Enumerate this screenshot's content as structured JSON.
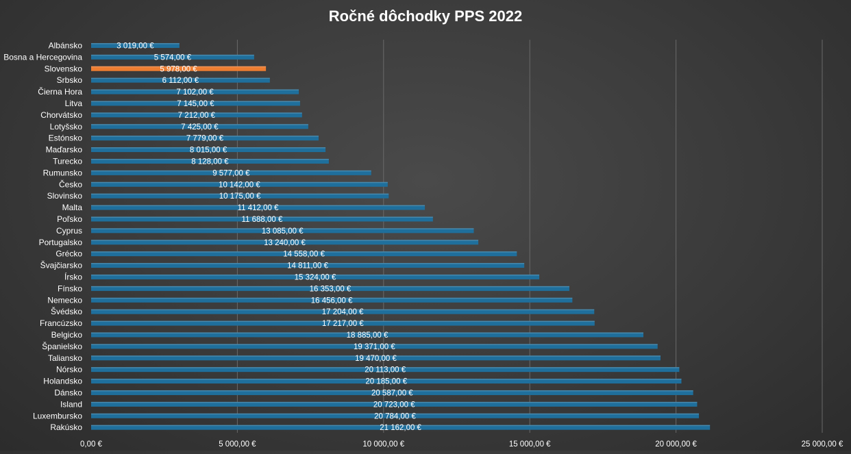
{
  "chart_data": {
    "type": "bar",
    "orientation": "horizontal",
    "title": "Ročné dôchodky PPS 2022",
    "xlabel": "",
    "ylabel": "",
    "xlim": [
      0,
      25000
    ],
    "x_ticks": [
      0,
      5000,
      10000,
      15000,
      20000,
      25000
    ],
    "x_tick_labels": [
      "0,00 €",
      "5 000,00 €",
      "10 000,00 €",
      "15 000,00 €",
      "20 000,00 €",
      "25 000,00 €"
    ],
    "grid": true,
    "legend": "none",
    "colors": {
      "default": "#1f6f9c",
      "highlight": "#ed7d31"
    },
    "highlight_category": "Slovensko",
    "categories": [
      "Albánsko",
      "Bosna a Hercegovina",
      "Slovensko",
      "Srbsko",
      "Čierna Hora",
      "Litva",
      "Chorvátsko",
      "Lotyšsko",
      "Estónsko",
      "Maďarsko",
      "Turecko",
      "Rumunsko",
      "Česko",
      "Slovinsko",
      "Malta",
      "Poľsko",
      "Cyprus",
      "Portugalsko",
      "Grécko",
      "Švajčiarsko",
      "Írsko",
      "Fínsko",
      "Nemecko",
      "Švédsko",
      "Francúzsko",
      "Belgicko",
      "Španielsko",
      "Taliansko",
      "Nórsko",
      "Holandsko",
      "Dánsko",
      "Island",
      "Luxembursko",
      "Rakúsko"
    ],
    "values": [
      3019,
      5574,
      5978,
      6112,
      7102,
      7145,
      7212,
      7425,
      7779,
      8015,
      8128,
      9577,
      10142,
      10175,
      11412,
      11688,
      13085,
      13240,
      14558,
      14811,
      15324,
      16353,
      16456,
      17204,
      17217,
      18885,
      19371,
      19470,
      20113,
      20185,
      20587,
      20723,
      20784,
      21162
    ],
    "value_labels": [
      "3 019,00 €",
      "5 574,00 €",
      "5 978,00 €",
      "6 112,00 €",
      "7 102,00 €",
      "7 145,00 €",
      "7 212,00 €",
      "7 425,00 €",
      "7 779,00 €",
      "8 015,00 €",
      "8 128,00 €",
      "9 577,00 €",
      "10 142,00 €",
      "10 175,00 €",
      "11 412,00 €",
      "11 688,00 €",
      "13 085,00 €",
      "13 240,00 €",
      "14 558,00 €",
      "14 811,00 €",
      "15 324,00 €",
      "16 353,00 €",
      "16 456,00 €",
      "17 204,00 €",
      "17 217,00 €",
      "18 885,00 €",
      "19 371,00 €",
      "19 470,00 €",
      "20 113,00 €",
      "20 185,00 €",
      "20 587,00 €",
      "20 723,00 €",
      "20 784,00 €",
      "21 162,00 €"
    ]
  }
}
